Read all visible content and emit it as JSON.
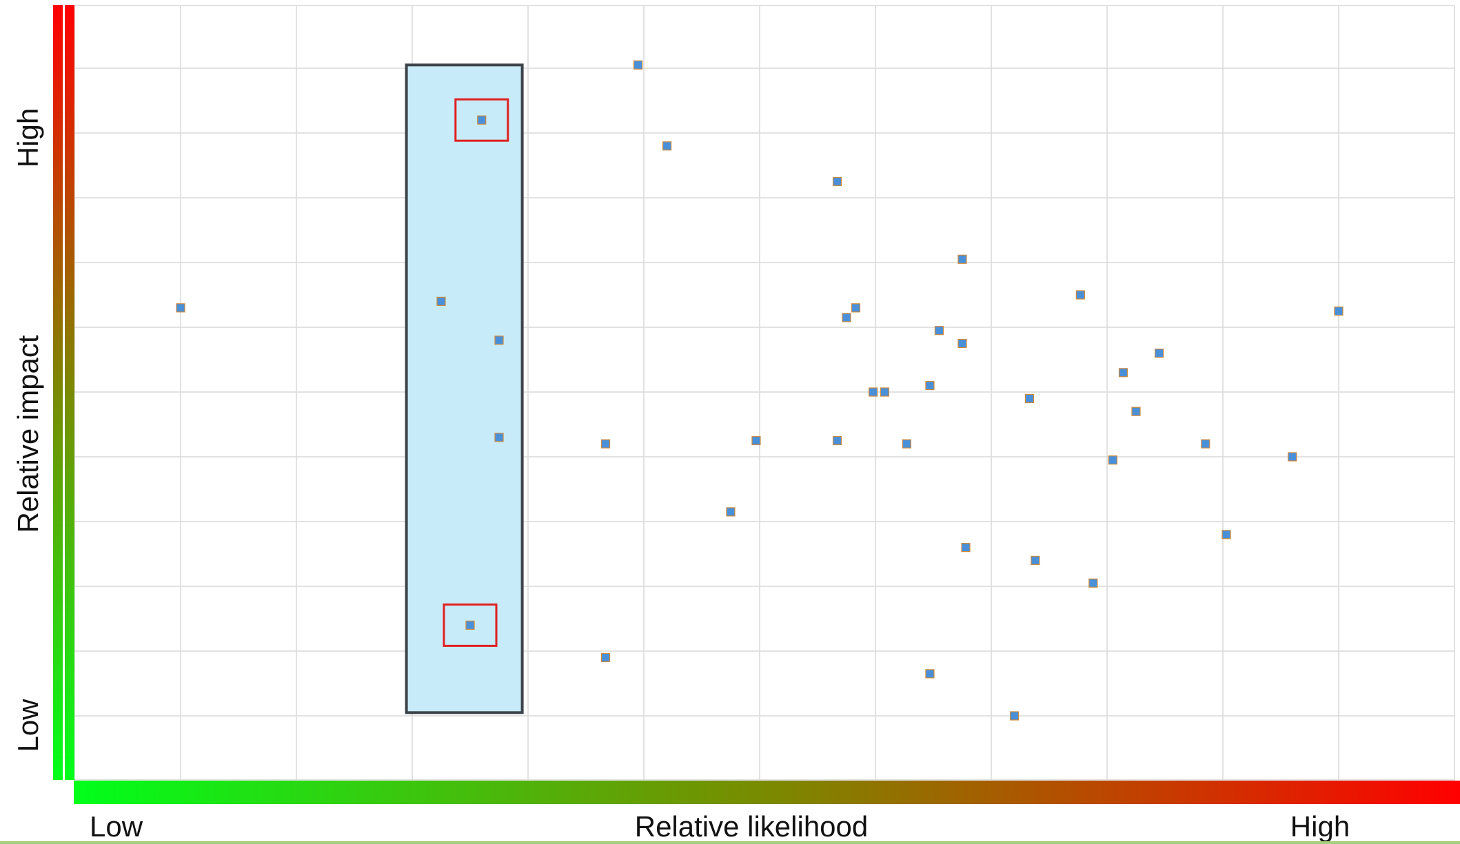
{
  "chart_data": {
    "type": "scatter",
    "title": "",
    "xlabel": "Relative likelihood",
    "ylabel": "Relative impact",
    "x_low_label": "Low",
    "x_high_label": "High",
    "y_low_label": "Low",
    "y_high_label": "High",
    "xlim": [
      0,
      12
    ],
    "ylim": [
      0,
      12
    ],
    "grid": true,
    "legend": "none",
    "colors": {
      "marker_fill": "#4a90d9",
      "marker_stroke": "#d08a3a",
      "highlight_band_fill": "#c7ebf9",
      "highlight_band_stroke": "#3d4449",
      "highlight_point_box": "#e02020",
      "gradient_low": "#00ff1a",
      "gradient_high": "#ff0000",
      "grid": "#d9d9d9"
    },
    "highlight_band": {
      "x_range": [
        2.95,
        3.95
      ],
      "y_range": [
        1.05,
        11.05
      ]
    },
    "highlighted_points": [
      {
        "x": 3.6,
        "y": 10.2
      },
      {
        "x": 3.5,
        "y": 2.4
      }
    ],
    "series": [
      {
        "points": [
          {
            "x": 1.0,
            "y": 7.3
          },
          {
            "x": 3.25,
            "y": 7.4
          },
          {
            "x": 3.6,
            "y": 10.2
          },
          {
            "x": 3.75,
            "y": 6.8
          },
          {
            "x": 3.75,
            "y": 5.3
          },
          {
            "x": 3.5,
            "y": 2.4
          },
          {
            "x": 4.67,
            "y": 5.2
          },
          {
            "x": 4.67,
            "y": 1.9
          },
          {
            "x": 4.95,
            "y": 11.05
          },
          {
            "x": 5.2,
            "y": 9.8
          },
          {
            "x": 5.75,
            "y": 4.15
          },
          {
            "x": 5.97,
            "y": 5.25
          },
          {
            "x": 6.67,
            "y": 9.25
          },
          {
            "x": 6.67,
            "y": 5.25
          },
          {
            "x": 6.75,
            "y": 7.15
          },
          {
            "x": 6.83,
            "y": 7.3
          },
          {
            "x": 6.98,
            "y": 6.0
          },
          {
            "x": 7.08,
            "y": 6.0
          },
          {
            "x": 7.27,
            "y": 5.2
          },
          {
            "x": 7.47,
            "y": 6.1
          },
          {
            "x": 7.55,
            "y": 6.95
          },
          {
            "x": 7.47,
            "y": 1.65
          },
          {
            "x": 7.75,
            "y": 8.05
          },
          {
            "x": 7.75,
            "y": 6.75
          },
          {
            "x": 7.78,
            "y": 3.6
          },
          {
            "x": 8.2,
            "y": 1.0
          },
          {
            "x": 8.33,
            "y": 5.9
          },
          {
            "x": 8.38,
            "y": 3.4
          },
          {
            "x": 8.77,
            "y": 7.5
          },
          {
            "x": 8.88,
            "y": 3.05
          },
          {
            "x": 9.05,
            "y": 4.95
          },
          {
            "x": 9.14,
            "y": 6.3
          },
          {
            "x": 9.25,
            "y": 5.7
          },
          {
            "x": 9.45,
            "y": 6.6
          },
          {
            "x": 9.85,
            "y": 5.2
          },
          {
            "x": 10.03,
            "y": 3.8
          },
          {
            "x": 10.6,
            "y": 5.0
          },
          {
            "x": 11.0,
            "y": 7.25
          }
        ]
      }
    ]
  }
}
